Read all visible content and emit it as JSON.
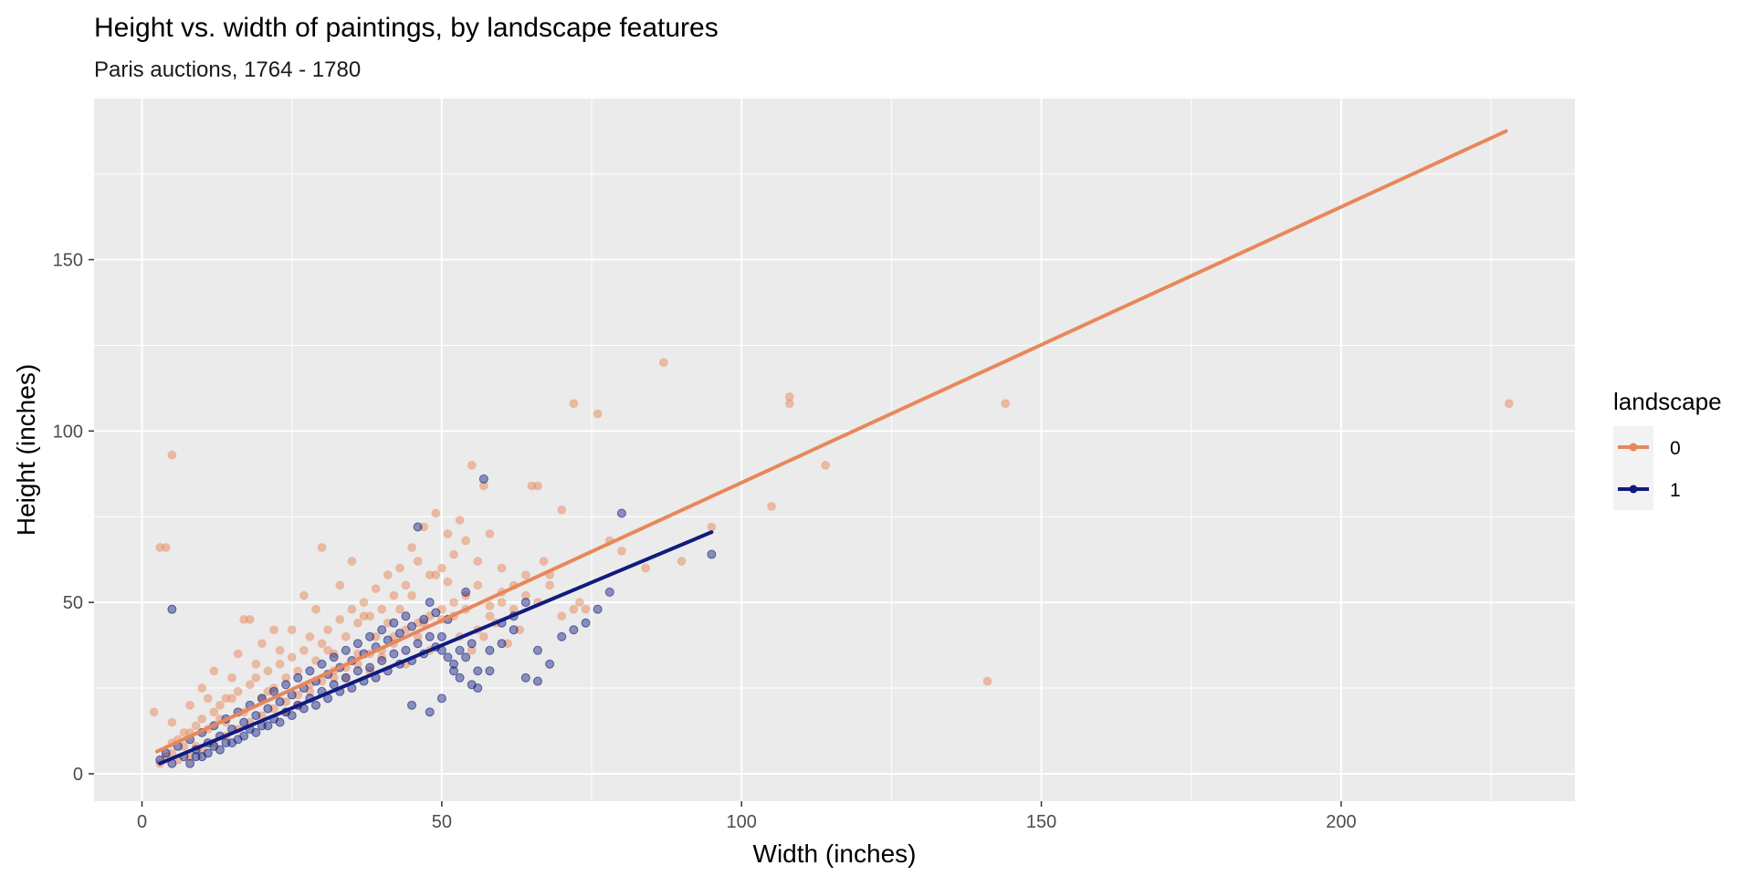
{
  "chart_data": {
    "type": "scatter",
    "title": "Height vs. width of paintings, by landscape features",
    "subtitle": "Paris auctions, 1764 - 1780",
    "xlabel": "Width (inches)",
    "ylabel": "Height (inches)",
    "xlim": [
      -8,
      239
    ],
    "ylim": [
      -8,
      197
    ],
    "x_ticks": [
      0,
      50,
      100,
      150,
      200
    ],
    "y_ticks": [
      0,
      50,
      100,
      150
    ],
    "grid": true,
    "legend": {
      "title": "landscape",
      "position": "right"
    },
    "series": [
      {
        "name": "0",
        "color": "#E8875A",
        "trend": {
          "x": [
            2.5,
            227.5
          ],
          "y": [
            6.5,
            187.5
          ]
        },
        "points": [
          [
            2,
            18
          ],
          [
            3,
            3
          ],
          [
            4,
            5
          ],
          [
            5,
            6
          ],
          [
            5,
            9
          ],
          [
            6,
            10
          ],
          [
            7,
            8
          ],
          [
            8,
            12
          ],
          [
            9,
            14
          ],
          [
            10,
            16
          ],
          [
            11,
            13
          ],
          [
            12,
            18
          ],
          [
            13,
            20
          ],
          [
            14,
            15
          ],
          [
            15,
            22
          ],
          [
            16,
            24
          ],
          [
            17,
            18
          ],
          [
            18,
            26
          ],
          [
            19,
            28
          ],
          [
            20,
            22
          ],
          [
            21,
            30
          ],
          [
            22,
            25
          ],
          [
            23,
            32
          ],
          [
            24,
            28
          ],
          [
            25,
            34
          ],
          [
            26,
            30
          ],
          [
            27,
            36
          ],
          [
            28,
            40
          ],
          [
            29,
            33
          ],
          [
            30,
            38
          ],
          [
            31,
            42
          ],
          [
            32,
            35
          ],
          [
            33,
            45
          ],
          [
            34,
            40
          ],
          [
            35,
            48
          ],
          [
            36,
            44
          ],
          [
            37,
            50
          ],
          [
            38,
            46
          ],
          [
            39,
            54
          ],
          [
            40,
            48
          ],
          [
            41,
            58
          ],
          [
            42,
            52
          ],
          [
            43,
            60
          ],
          [
            44,
            55
          ],
          [
            45,
            66
          ],
          [
            46,
            62
          ],
          [
            47,
            72
          ],
          [
            48,
            58
          ],
          [
            49,
            76
          ],
          [
            50,
            60
          ],
          [
            51,
            70
          ],
          [
            52,
            64
          ],
          [
            53,
            74
          ],
          [
            54,
            68
          ],
          [
            55,
            90
          ],
          [
            56,
            62
          ],
          [
            57,
            84
          ],
          [
            58,
            70
          ],
          [
            60,
            60
          ],
          [
            62,
            55
          ],
          [
            64,
            58
          ],
          [
            65,
            84
          ],
          [
            66,
            84
          ],
          [
            67,
            62
          ],
          [
            68,
            55
          ],
          [
            70,
            77
          ],
          [
            72,
            108
          ],
          [
            73,
            50
          ],
          [
            74,
            48
          ],
          [
            76,
            105
          ],
          [
            78,
            68
          ],
          [
            80,
            65
          ],
          [
            84,
            60
          ],
          [
            87,
            120
          ],
          [
            90,
            62
          ],
          [
            95,
            72
          ],
          [
            105,
            78
          ],
          [
            108,
            110
          ],
          [
            108,
            108
          ],
          [
            114,
            90
          ],
          [
            141,
            27
          ],
          [
            144,
            108
          ],
          [
            228,
            108
          ],
          [
            3,
            66
          ],
          [
            4,
            66
          ],
          [
            5,
            93
          ],
          [
            8,
            20
          ],
          [
            10,
            25
          ],
          [
            12,
            30
          ],
          [
            14,
            22
          ],
          [
            16,
            35
          ],
          [
            17,
            45
          ],
          [
            18,
            45
          ],
          [
            20,
            38
          ],
          [
            22,
            42
          ],
          [
            24,
            18
          ],
          [
            26,
            20
          ],
          [
            28,
            26
          ],
          [
            30,
            66
          ],
          [
            32,
            30
          ],
          [
            34,
            28
          ],
          [
            36,
            35
          ],
          [
            38,
            30
          ],
          [
            40,
            34
          ],
          [
            42,
            38
          ],
          [
            44,
            32
          ],
          [
            46,
            40
          ],
          [
            48,
            36
          ],
          [
            50,
            45
          ],
          [
            52,
            50
          ],
          [
            54,
            48
          ],
          [
            56,
            42
          ],
          [
            58,
            46
          ],
          [
            60,
            50
          ],
          [
            62,
            48
          ],
          [
            64,
            52
          ],
          [
            66,
            50
          ],
          [
            68,
            58
          ],
          [
            70,
            46
          ],
          [
            72,
            48
          ],
          [
            6,
            4
          ],
          [
            7,
            12
          ],
          [
            9,
            8
          ],
          [
            11,
            22
          ],
          [
            13,
            16
          ],
          [
            15,
            28
          ],
          [
            19,
            32
          ],
          [
            21,
            24
          ],
          [
            23,
            36
          ],
          [
            25,
            42
          ],
          [
            27,
            52
          ],
          [
            29,
            48
          ],
          [
            31,
            36
          ],
          [
            33,
            55
          ],
          [
            35,
            62
          ],
          [
            37,
            46
          ],
          [
            39,
            40
          ],
          [
            41,
            44
          ],
          [
            43,
            48
          ],
          [
            45,
            52
          ],
          [
            47,
            44
          ],
          [
            49,
            58
          ],
          [
            51,
            56
          ],
          [
            53,
            40
          ],
          [
            55,
            36
          ],
          [
            57,
            40
          ],
          [
            59,
            44
          ],
          [
            61,
            38
          ],
          [
            63,
            42
          ],
          [
            5,
            15
          ],
          [
            8,
            5
          ],
          [
            10,
            7
          ],
          [
            12,
            9
          ],
          [
            14,
            11
          ],
          [
            16,
            13
          ],
          [
            18,
            15
          ],
          [
            20,
            17
          ],
          [
            22,
            19
          ],
          [
            24,
            21
          ],
          [
            26,
            23
          ],
          [
            28,
            24
          ],
          [
            30,
            27
          ],
          [
            32,
            28
          ],
          [
            34,
            31
          ],
          [
            36,
            32
          ],
          [
            38,
            35
          ],
          [
            40,
            36
          ],
          [
            42,
            40
          ],
          [
            44,
            42
          ],
          [
            46,
            44
          ],
          [
            48,
            46
          ],
          [
            50,
            48
          ],
          [
            52,
            46
          ],
          [
            54,
            52
          ],
          [
            56,
            55
          ],
          [
            58,
            49
          ],
          [
            60,
            53
          ]
        ]
      },
      {
        "name": "1",
        "color": "#101A7E",
        "trend": {
          "x": [
            3.0,
            95.0
          ],
          "y": [
            3.0,
            70.5
          ]
        },
        "points": [
          [
            3,
            4
          ],
          [
            4,
            6
          ],
          [
            5,
            3
          ],
          [
            5,
            48
          ],
          [
            6,
            8
          ],
          [
            7,
            5
          ],
          [
            8,
            10
          ],
          [
            9,
            7
          ],
          [
            10,
            12
          ],
          [
            11,
            9
          ],
          [
            12,
            14
          ],
          [
            13,
            11
          ],
          [
            14,
            16
          ],
          [
            15,
            13
          ],
          [
            16,
            18
          ],
          [
            17,
            15
          ],
          [
            18,
            20
          ],
          [
            19,
            17
          ],
          [
            20,
            22
          ],
          [
            21,
            19
          ],
          [
            22,
            24
          ],
          [
            23,
            21
          ],
          [
            24,
            26
          ],
          [
            25,
            23
          ],
          [
            26,
            28
          ],
          [
            27,
            25
          ],
          [
            28,
            30
          ],
          [
            29,
            27
          ],
          [
            30,
            32
          ],
          [
            31,
            29
          ],
          [
            32,
            34
          ],
          [
            33,
            31
          ],
          [
            34,
            36
          ],
          [
            35,
            33
          ],
          [
            36,
            38
          ],
          [
            37,
            35
          ],
          [
            38,
            40
          ],
          [
            39,
            37
          ],
          [
            40,
            42
          ],
          [
            41,
            39
          ],
          [
            42,
            44
          ],
          [
            43,
            41
          ],
          [
            44,
            46
          ],
          [
            45,
            43
          ],
          [
            46,
            72
          ],
          [
            47,
            45
          ],
          [
            48,
            50
          ],
          [
            49,
            47
          ],
          [
            50,
            40
          ],
          [
            51,
            45
          ],
          [
            52,
            30
          ],
          [
            53,
            28
          ],
          [
            54,
            53
          ],
          [
            55,
            26
          ],
          [
            56,
            25
          ],
          [
            57,
            86
          ],
          [
            58,
            30
          ],
          [
            60,
            38
          ],
          [
            62,
            42
          ],
          [
            64,
            50
          ],
          [
            66,
            27
          ],
          [
            66,
            36
          ],
          [
            68,
            32
          ],
          [
            70,
            40
          ],
          [
            72,
            42
          ],
          [
            74,
            44
          ],
          [
            76,
            48
          ],
          [
            78,
            53
          ],
          [
            80,
            76
          ],
          [
            95,
            64
          ],
          [
            10,
            5
          ],
          [
            12,
            8
          ],
          [
            14,
            9
          ],
          [
            16,
            10
          ],
          [
            18,
            13
          ],
          [
            20,
            14
          ],
          [
            22,
            16
          ],
          [
            24,
            18
          ],
          [
            26,
            20
          ],
          [
            28,
            22
          ],
          [
            30,
            24
          ],
          [
            32,
            26
          ],
          [
            34,
            28
          ],
          [
            36,
            30
          ],
          [
            38,
            31
          ],
          [
            40,
            33
          ],
          [
            42,
            35
          ],
          [
            44,
            36
          ],
          [
            46,
            38
          ],
          [
            48,
            40
          ],
          [
            50,
            36
          ],
          [
            52,
            32
          ],
          [
            54,
            34
          ],
          [
            56,
            30
          ],
          [
            58,
            36
          ],
          [
            60,
            44
          ],
          [
            62,
            46
          ],
          [
            64,
            28
          ],
          [
            8,
            3
          ],
          [
            9,
            5
          ],
          [
            11,
            6
          ],
          [
            13,
            7
          ],
          [
            15,
            9
          ],
          [
            17,
            11
          ],
          [
            19,
            12
          ],
          [
            21,
            14
          ],
          [
            23,
            15
          ],
          [
            25,
            17
          ],
          [
            27,
            19
          ],
          [
            29,
            20
          ],
          [
            31,
            22
          ],
          [
            33,
            24
          ],
          [
            35,
            25
          ],
          [
            37,
            27
          ],
          [
            39,
            28
          ],
          [
            41,
            30
          ],
          [
            43,
            32
          ],
          [
            45,
            33
          ],
          [
            47,
            35
          ],
          [
            49,
            37
          ],
          [
            51,
            34
          ],
          [
            53,
            36
          ],
          [
            55,
            38
          ],
          [
            45,
            20
          ],
          [
            48,
            18
          ],
          [
            50,
            22
          ]
        ]
      }
    ]
  }
}
